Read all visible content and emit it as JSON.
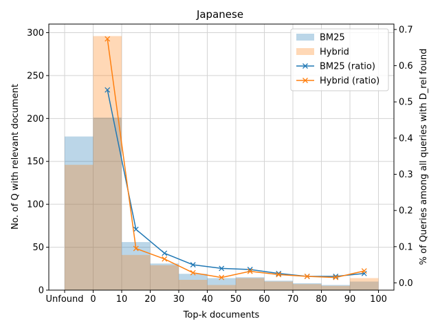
{
  "chart_data": {
    "type": "bar",
    "title": "Japanese",
    "xlabel": "Top-k documents",
    "ylabel_left": "No. of Q with relevant document",
    "ylabel_right": "% of Queries among all queries with D_rel found",
    "x_tick_labels": [
      "Unfound",
      "0",
      "10",
      "20",
      "30",
      "40",
      "50",
      "60",
      "70",
      "80",
      "90",
      "100"
    ],
    "y_left_ticks": [
      "0",
      "50",
      "100",
      "150",
      "200",
      "250",
      "300"
    ],
    "y_right_ticks": [
      "0.0",
      "0.1",
      "0.2",
      "0.3",
      "0.4",
      "0.5",
      "0.6",
      "0.7"
    ],
    "ylim_left": [
      0,
      310
    ],
    "ylim_right": [
      -0.02,
      0.715
    ],
    "bins": [
      "Unfound",
      "0-10",
      "10-20",
      "20-30",
      "30-40",
      "40-50",
      "50-60",
      "60-70",
      "70-80",
      "80-90",
      "90-100"
    ],
    "bar_series": [
      {
        "name": "BM25",
        "color": "#1f77b4",
        "alpha": 0.3,
        "values": [
          179,
          201,
          56,
          31,
          19,
          14,
          15,
          11,
          8,
          6,
          10
        ]
      },
      {
        "name": "Hybrid",
        "color": "#ff7f0e",
        "alpha": 0.3,
        "values": [
          146,
          296,
          41,
          29,
          12,
          6,
          14,
          10,
          7,
          5,
          14
        ]
      }
    ],
    "ratio_x": [
      5,
      15,
      25,
      35,
      45,
      55,
      65,
      75,
      85,
      95
    ],
    "line_series": [
      {
        "name": "BM25 (ratio)",
        "color": "#1f77b4",
        "values": [
          0.533,
          0.148,
          0.082,
          0.05,
          0.04,
          0.037,
          0.026,
          0.018,
          0.018,
          0.026
        ]
      },
      {
        "name": "Hybrid (ratio)",
        "color": "#ff7f0e",
        "values": [
          0.674,
          0.095,
          0.066,
          0.028,
          0.015,
          0.032,
          0.023,
          0.018,
          0.015,
          0.033
        ]
      }
    ],
    "grid": true,
    "legend_position": "top-right"
  }
}
